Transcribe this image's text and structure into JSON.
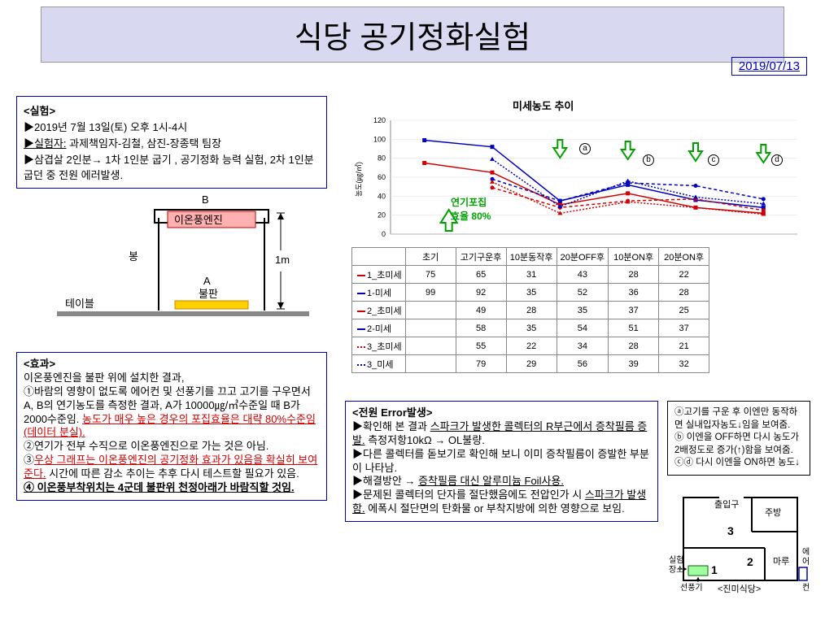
{
  "title": "식당 공기정화실험",
  "date": "2019/07/13",
  "experiment": {
    "heading": "<실험>",
    "line1": "▶2019년 7월 13일(토) 오후 1시-4시",
    "line2_label": "▶실험자:",
    "line2_rest": " 과제책임자-김철, 삼진-장종택 팀장",
    "line3": "▶삼겹살 2인분→ 1차 1인분 굽기 , 공기정화 능력 실험, 2차 1인분 굽던 중 전원 에러발생."
  },
  "diagram": {
    "b_label": "B",
    "engine": "이온풍엔진",
    "rod": "봉",
    "a_label": "A",
    "plate": "불판",
    "table": "테이블",
    "height": "1m"
  },
  "effect": {
    "heading": "<효과>",
    "p0": "이온풍엔진을 불판 위에 설치한 결과,",
    "p1": "①바람의 영향이 없도록 에어컨 및 선풍기를 끄고 고기를 구우면서 A, B의 연기농도를 측정한 결과,  A가 10000㎍/㎥수준일 때 B가 2000수준임. ",
    "p1b": "농도가 매우 높은 경우의 포집효율은 대략 80%수준임 (데이터 분실).",
    "p2": "②연기가 전부 수직으로 이온풍엔진으로 가는 것은 아님.",
    "p3a": "③",
    "p3b": "우상 그래프는 이온풍엔진의 공기정화 효과가 있음을 확실히 보여준다.",
    "p3c": " 시간에 따른 감소 추이는 추후 다시 테스트할 필요가 있음.",
    "p4": "④ 이온풍부착위치는 4군데 불판위 천정아래가 바람직할 것임."
  },
  "error": {
    "heading": "<전원 Error발생>",
    "e1a": "▶확인해 본 결과 ",
    "e1b": "스파크가 발생한 콜렉터의 R부근에서 증착필름 증발.",
    "e1c": " 측정저항10kΩ → OL불량.",
    "e2": "▶다른 콜렉터를 돋보기로 확인해 보니 이미 증착필름이 증발한 부분이 나타남.",
    "e3a": "▶해결방안 → ",
    "e3b": "증착필름 대신 알루미늄 Foil사용.",
    "e4a": "▶문제된 콜렉터의 단자를 절단했음에도 전압인가 시 ",
    "e4b": "스파크가 발생함.",
    "e4c": " 에폭시 절단면의 탄화물 or 부착지방에 의한 영향으로 보임."
  },
  "anno": {
    "a": "ⓐ고기를 구운 후 이엔만 동작하면 실내입자농도↓임을 보여줌.",
    "b": "ⓑ 이엔을 OFF하면 다시 농도가 2배정도로 증가(↑)함을 보여줌.",
    "c": "ⓒⓓ 다시 이엔을 ON하면 농도↓"
  },
  "chart": {
    "title": "미세농도 추이",
    "ylabel": "농도(㎍/㎥)",
    "ylim": [
      0,
      120
    ],
    "ytick_step": 20,
    "categories": [
      "초기",
      "고기구운후",
      "10분동작후",
      "20분OFF후",
      "10분ON후",
      "20분ON후"
    ],
    "series": [
      {
        "name": "1_초미세",
        "color": "#d00000",
        "dash": "0",
        "marker": "square",
        "values": [
          75,
          65,
          31,
          43,
          28,
          22
        ]
      },
      {
        "name": "1-미세",
        "color": "#0000c0",
        "dash": "0",
        "marker": "square",
        "values": [
          99,
          92,
          35,
          52,
          36,
          28
        ]
      },
      {
        "name": "2_초미세",
        "color": "#d00000",
        "dash": "4 3",
        "marker": "circle",
        "values": [
          null,
          49,
          28,
          35,
          37,
          25
        ]
      },
      {
        "name": "2-미세",
        "color": "#0000c0",
        "dash": "4 3",
        "marker": "circle",
        "values": [
          null,
          58,
          35,
          54,
          51,
          37
        ]
      },
      {
        "name": "3_초미세",
        "color": "#d00000",
        "dash": "2 2",
        "marker": "triangle",
        "values": [
          null,
          55,
          22,
          34,
          28,
          21
        ]
      },
      {
        "name": "3_미세",
        "color": "#0000c0",
        "dash": "2 2",
        "marker": "triangle",
        "values": [
          null,
          79,
          29,
          56,
          39,
          32
        ]
      }
    ],
    "smoke_label1": "연기포집",
    "smoke_label2": "효율 80%",
    "markers": {
      "a": "a",
      "b": "b",
      "c": "c",
      "d": "d"
    }
  },
  "floor": {
    "entrance": "출입구",
    "kitchen": "주방",
    "n1": "1",
    "n2": "2",
    "n3": "3",
    "maru": "마루",
    "lab": "실험장소",
    "fan": "선풍기",
    "ac": "에어컨",
    "caption": "<진미식당>"
  }
}
